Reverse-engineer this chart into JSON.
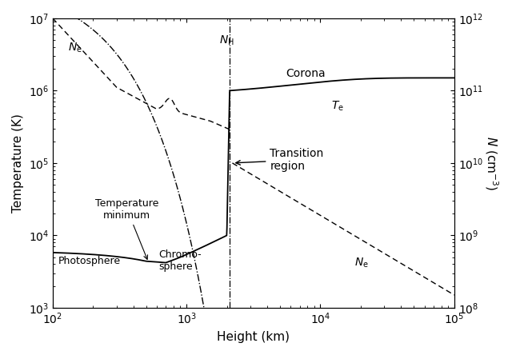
{
  "xlabel": "Height (km)",
  "ylabel_left": "Temperature (K)",
  "ylabel_right": "$N$ (cm$^{-3}$)",
  "xlim": [
    100,
    100000
  ],
  "ylim_left": [
    1000,
    10000000
  ],
  "ylim_right": [
    100000000.0,
    1000000000000.0
  ],
  "transition_x": 2100
}
